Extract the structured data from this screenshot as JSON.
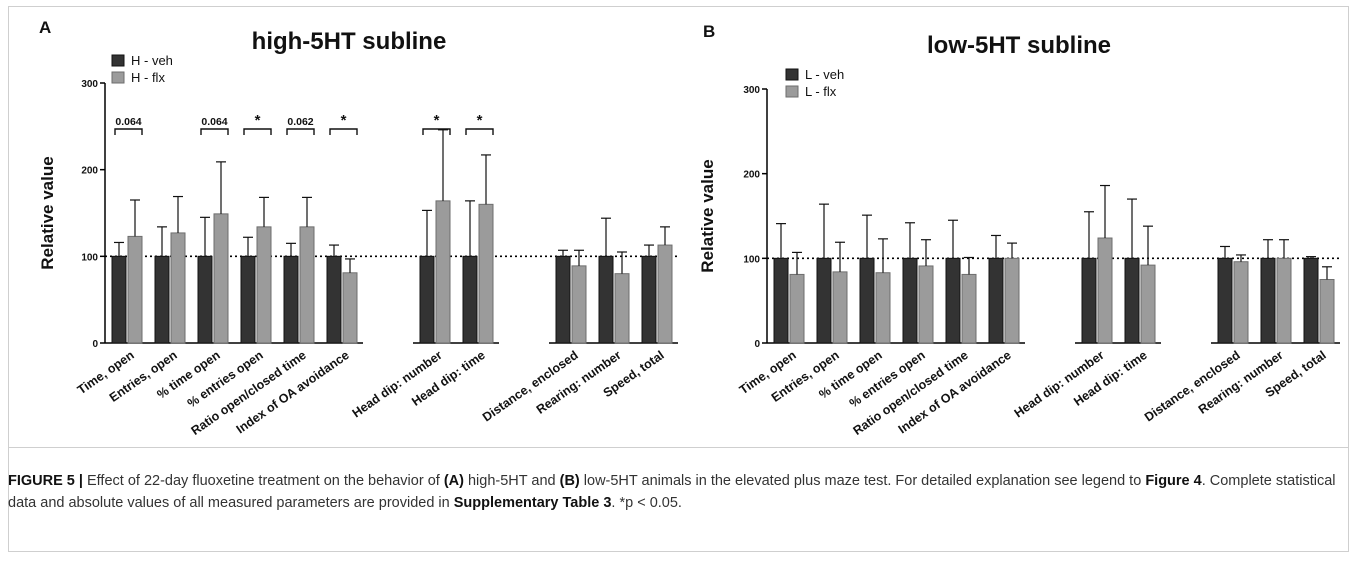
{
  "chart_data": [
    {
      "type": "bar",
      "panel_label": "A",
      "title": "high-5HT subline",
      "ylabel": "Relative value",
      "ylim": [
        0,
        300
      ],
      "yticks": [
        0,
        100,
        200,
        300
      ],
      "reference_line": 100,
      "legend": "top-left",
      "categories": [
        "Time, open",
        "Entries, open",
        "% time open",
        "% entries open",
        "Ratio open/closed time",
        "Index of OA avoidance",
        "Head dip: number",
        "Head dip: time",
        "Distance, enclosed",
        "Rearing: number",
        "Speed, total"
      ],
      "groups": [
        [
          0,
          1,
          2,
          3,
          4,
          5
        ],
        [
          6,
          7
        ],
        [
          8,
          9,
          10
        ]
      ],
      "series": [
        {
          "name": "H - veh",
          "color": "#333333",
          "values": [
            100,
            100,
            100,
            100,
            100,
            100,
            100,
            100,
            100,
            100,
            100
          ],
          "errors": [
            16,
            34,
            45,
            22,
            15,
            13,
            53,
            64,
            7,
            44,
            13
          ]
        },
        {
          "name": "H - flx",
          "color": "#9b9b9b",
          "values": [
            123,
            127,
            149,
            134,
            134,
            81,
            164,
            160,
            89,
            80,
            113
          ],
          "errors": [
            42,
            42,
            60,
            34,
            34,
            16,
            82,
            57,
            18,
            25,
            21
          ]
        }
      ],
      "annotations": [
        {
          "category": 0,
          "text": "0.064"
        },
        {
          "category": 2,
          "text": "0.064"
        },
        {
          "category": 3,
          "text": "*"
        },
        {
          "category": 4,
          "text": "0.062"
        },
        {
          "category": 5,
          "text": "*"
        },
        {
          "category": 6,
          "text": "*"
        },
        {
          "category": 7,
          "text": "*"
        }
      ]
    },
    {
      "type": "bar",
      "panel_label": "B",
      "title": "low-5HT subline",
      "ylabel": "Relative value",
      "ylim": [
        0,
        300
      ],
      "yticks": [
        0,
        100,
        200,
        300
      ],
      "reference_line": 100,
      "legend": "top-left",
      "categories": [
        "Time, open",
        "Entries, open",
        "% time open",
        "% entries open",
        "Ratio open/closed time",
        "Index of OA avoidance",
        "Head dip: number",
        "Head dip: time",
        "Distance, enclosed",
        "Rearing: number",
        "Speed, total"
      ],
      "groups": [
        [
          0,
          1,
          2,
          3,
          4,
          5
        ],
        [
          6,
          7
        ],
        [
          8,
          9,
          10
        ]
      ],
      "series": [
        {
          "name": "L - veh",
          "color": "#333333",
          "values": [
            100,
            100,
            100,
            100,
            100,
            100,
            100,
            100,
            100,
            100,
            100
          ],
          "errors": [
            41,
            64,
            51,
            42,
            45,
            27,
            55,
            70,
            14,
            22,
            2
          ]
        },
        {
          "name": "L - flx",
          "color": "#9b9b9b",
          "values": [
            81,
            84,
            83,
            91,
            81,
            100,
            124,
            92,
            96,
            100,
            75
          ],
          "errors": [
            26,
            35,
            40,
            31,
            20,
            18,
            62,
            46,
            8,
            22,
            15
          ]
        }
      ],
      "annotations": []
    }
  ],
  "caption": {
    "label": "FIGURE 5 |",
    "text_1": " Effect of 22-day fluoxetine treatment on the behavior of ",
    "ref_a": "(A)",
    "text_2": " high-5HT and ",
    "ref_b": "(B)",
    "text_3": " low-5HT animals in the elevated plus maze test. For detailed explanation see legend to ",
    "fig_ref": "Figure 4",
    "text_4": ". Complete statistical data and absolute values of all measured parameters are provided in ",
    "supp_ref": "Supplementary Table 3",
    "text_5": ". *p < 0.05."
  }
}
